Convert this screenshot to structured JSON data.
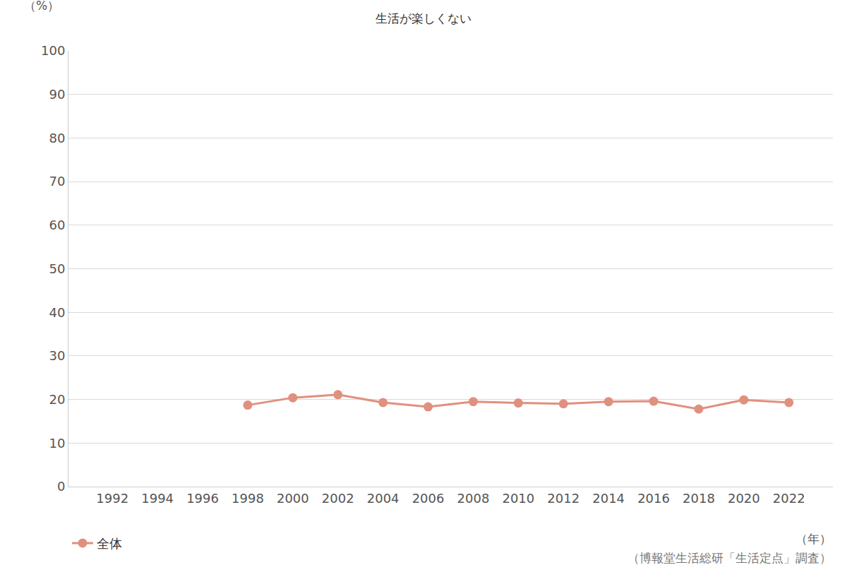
{
  "chart_data": {
    "type": "line",
    "title": "生活が楽しくない",
    "ylabel": "（%）",
    "xlabel": "（年）",
    "annotations": [
      "（博報堂生活総研「生活定点」調査）"
    ],
    "categories": [
      "1992",
      "1994",
      "1996",
      "1998",
      "2000",
      "2002",
      "2004",
      "2006",
      "2008",
      "2010",
      "2012",
      "2014",
      "2016",
      "2018",
      "2020",
      "2022"
    ],
    "series": [
      {
        "name": "全体",
        "color": "#e0907e",
        "marker": "circle",
        "line_style": "solid",
        "values": [
          null,
          null,
          null,
          18.7,
          20.4,
          21.1,
          19.3,
          18.3,
          19.5,
          19.2,
          19.0,
          19.5,
          19.6,
          17.8,
          19.9,
          19.3
        ]
      }
    ],
    "ylim": [
      0,
      100
    ],
    "yticks": [
      0,
      10,
      20,
      30,
      40,
      50,
      60,
      70,
      80,
      90,
      100
    ],
    "grid": true,
    "legend": "bottom left"
  }
}
